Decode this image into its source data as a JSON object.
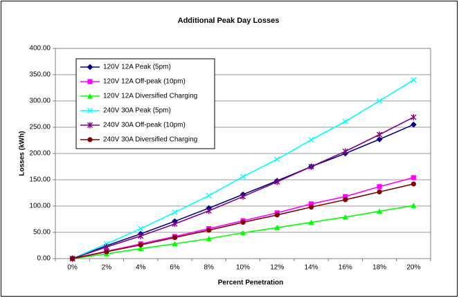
{
  "chart_data": {
    "type": "line",
    "title": "Additional Peak Day Losses",
    "x_label": "Percent Penetration",
    "y_label": "Losses (kWh)",
    "categories": [
      "0%",
      "2%",
      "4%",
      "6%",
      "8%",
      "10%",
      "12%",
      "14%",
      "16%",
      "18%",
      "20%"
    ],
    "ylim": [
      0,
      400
    ],
    "yticks": [
      {
        "value": 0,
        "label": "0.00"
      },
      {
        "value": 50,
        "label": "50.00"
      },
      {
        "value": 100,
        "label": "100.00"
      },
      {
        "value": 150,
        "label": "150.00"
      },
      {
        "value": 200,
        "label": "200.00"
      },
      {
        "value": 250,
        "label": "250.00"
      },
      {
        "value": 300,
        "label": "300.00"
      },
      {
        "value": 350,
        "label": "350.00"
      },
      {
        "value": 400,
        "label": "400.00"
      }
    ],
    "grid": true,
    "legend": "top-left",
    "series": [
      {
        "name": "120V 12A Peak (5pm)",
        "color": "#000080",
        "marker": "diamond",
        "values": [
          0,
          24.5,
          47,
          71,
          96,
          122,
          148,
          175,
          200,
          227,
          255
        ]
      },
      {
        "name": "120V 12A Off-peak (10pm)",
        "color": "#ff00ff",
        "marker": "square",
        "values": [
          0,
          14,
          28,
          42,
          57,
          72,
          87,
          104,
          118,
          137,
          154
        ]
      },
      {
        "name": "120V 12A Diversified Charging",
        "color": "#00ff00",
        "marker": "triangle",
        "values": [
          0,
          9,
          19,
          28,
          38,
          49,
          59,
          69,
          79,
          90,
          101
        ]
      },
      {
        "name": "240V 30A Peak (5pm)",
        "color": "#00ffff",
        "marker": "x",
        "values": [
          0,
          28,
          57,
          88,
          120,
          156,
          189,
          226,
          261,
          300,
          340
        ]
      },
      {
        "name": "240V 30A Off-peak (10pm)",
        "color": "#800080",
        "marker": "star",
        "values": [
          0,
          22,
          43,
          66,
          91,
          118,
          146,
          175,
          204,
          236,
          269
        ]
      },
      {
        "name": "240V 30A Diversified Charging",
        "color": "#800000",
        "marker": "circle",
        "values": [
          0,
          13,
          26,
          40,
          54,
          69,
          83,
          98,
          112,
          127,
          142
        ]
      }
    ]
  }
}
